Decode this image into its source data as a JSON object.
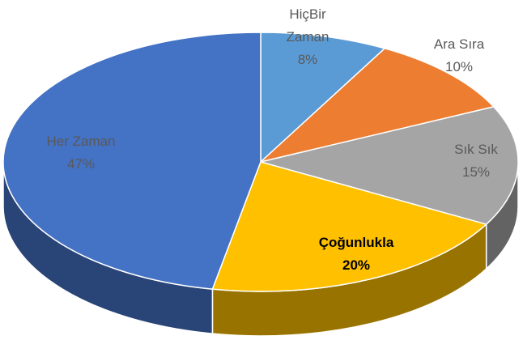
{
  "chart_data": {
    "type": "pie3d",
    "categories": [
      "HiçBir Zaman",
      "Ara Sıra",
      "Sık Sık",
      "Çoğunlukla",
      "Her Zaman"
    ],
    "values": [
      8,
      10,
      15,
      20,
      47
    ],
    "value_labels": [
      "8%",
      "10%",
      "15%",
      "20%",
      "47%"
    ],
    "colors": [
      "#5b9bd5",
      "#ed7d31",
      "#a5a5a5",
      "#ffc000",
      "#4472c4"
    ]
  }
}
